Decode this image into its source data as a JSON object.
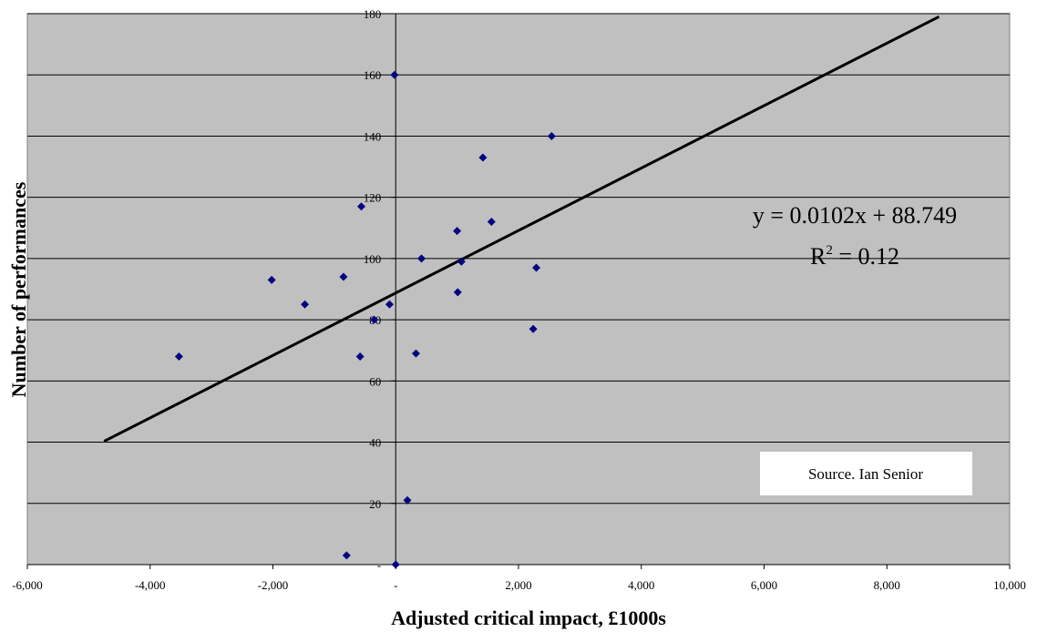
{
  "chart_data": {
    "type": "scatter",
    "xlabel": "Adjusted critical impact, £1000s",
    "ylabel": "Number of performances",
    "xlim": [
      -6000,
      10000
    ],
    "ylim": [
      0,
      180
    ],
    "x_ticks": [
      -6000,
      -4000,
      -2000,
      0,
      2000,
      4000,
      6000,
      8000,
      10000
    ],
    "x_tick_labels": [
      "-6,000",
      "-4,000",
      "-2,000",
      "-",
      "2,000",
      "4,000",
      "6,000",
      "8,000",
      "10,000"
    ],
    "y_ticks": [
      0,
      20,
      40,
      60,
      80,
      100,
      120,
      140,
      160,
      180
    ],
    "y_tick_labels": [
      "-",
      "20",
      "40",
      "60",
      "80",
      "100",
      "120",
      "140",
      "160",
      "180"
    ],
    "grid": "horizontal",
    "background_color": "#c0c0c0",
    "marker_color": "#000080",
    "points": [
      {
        "x": -3530,
        "y": 68
      },
      {
        "x": -2020,
        "y": 93
      },
      {
        "x": -1480,
        "y": 85
      },
      {
        "x": -850,
        "y": 94
      },
      {
        "x": -800,
        "y": 3
      },
      {
        "x": -560,
        "y": 117
      },
      {
        "x": -580,
        "y": 68
      },
      {
        "x": -350,
        "y": 80
      },
      {
        "x": -100,
        "y": 85
      },
      {
        "x": -20,
        "y": 160
      },
      {
        "x": 0,
        "y": 0
      },
      {
        "x": 190,
        "y": 21
      },
      {
        "x": 330,
        "y": 69
      },
      {
        "x": 420,
        "y": 100
      },
      {
        "x": 1000,
        "y": 109
      },
      {
        "x": 1010,
        "y": 89
      },
      {
        "x": 1070,
        "y": 99
      },
      {
        "x": 1420,
        "y": 133
      },
      {
        "x": 1560,
        "y": 112
      },
      {
        "x": 2240,
        "y": 77
      },
      {
        "x": 2290,
        "y": 97
      },
      {
        "x": 2540,
        "y": 140
      }
    ],
    "trendline": {
      "slope": 0.0102,
      "intercept": 88.749,
      "x_range": [
        -4750,
        8850
      ],
      "equation_label": "y = 0.0102x + 88.749",
      "r2_prefix": "R",
      "r2_sup": "2",
      "r2_suffix": " = 0.12"
    },
    "annotation": "Source. Ian Senior"
  }
}
